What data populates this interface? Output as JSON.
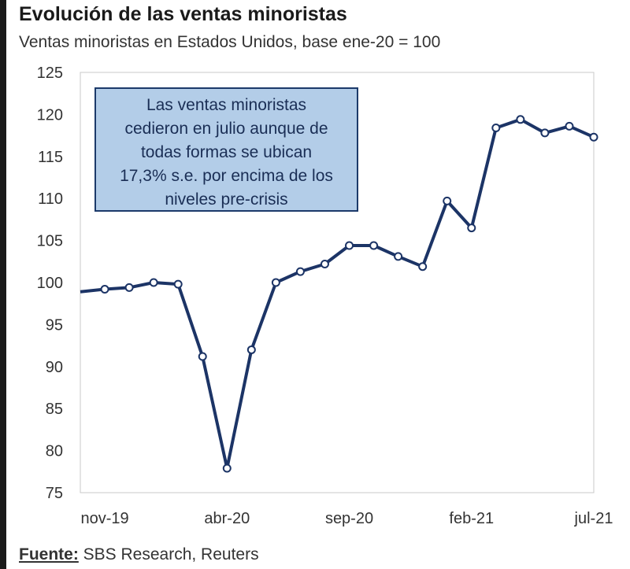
{
  "header": {
    "title": "Evolución de las ventas minoristas",
    "subtitle": "Ventas minoristas en Estados Unidos, base ene-20 = 100"
  },
  "annotation": {
    "lines": [
      "Las ventas minoristas",
      "cedieron en julio aunque de",
      "todas formas se ubican",
      "17,3% s.e. por encima de los",
      "niveles pre-crisis"
    ]
  },
  "source": {
    "label": "Fuente:",
    "text": " SBS Research, Reuters"
  },
  "colors": {
    "line": "#1c3466",
    "annotation_bg": "#b3cde8",
    "annotation_border": "#1c3a6a"
  },
  "chart_data": {
    "type": "line",
    "title": "Evolución de las ventas minoristas",
    "subtitle": "Ventas minoristas en Estados Unidos, base ene-20 = 100",
    "xlabel": "",
    "ylabel": "",
    "ylim": [
      75,
      125
    ],
    "yticks": [
      75,
      80,
      85,
      90,
      95,
      100,
      105,
      110,
      115,
      120,
      125
    ],
    "x": [
      "oct-19",
      "nov-19",
      "dic-19",
      "ene-20",
      "feb-20",
      "mar-20",
      "abr-20",
      "may-20",
      "jun-20",
      "jul-20",
      "ago-20",
      "sep-20",
      "oct-20",
      "nov-20",
      "dic-20",
      "ene-21",
      "feb-21",
      "mar-21",
      "abr-21",
      "may-21",
      "jun-21",
      "jul-21"
    ],
    "xtick_labels": [
      "nov-19",
      "abr-20",
      "sep-20",
      "feb-21",
      "jul-21"
    ],
    "series": [
      {
        "name": "Ventas minoristas",
        "values": [
          98.9,
          99.2,
          99.4,
          100.0,
          99.8,
          91.2,
          77.9,
          92.0,
          100.0,
          101.3,
          102.2,
          104.4,
          104.4,
          103.1,
          101.9,
          109.7,
          106.5,
          118.4,
          119.4,
          117.8,
          118.6,
          117.3
        ],
        "markers": [
          false,
          true,
          true,
          true,
          true,
          true,
          true,
          true,
          true,
          true,
          true,
          true,
          true,
          true,
          true,
          true,
          true,
          true,
          true,
          true,
          true,
          true
        ]
      }
    ],
    "grid": false
  }
}
